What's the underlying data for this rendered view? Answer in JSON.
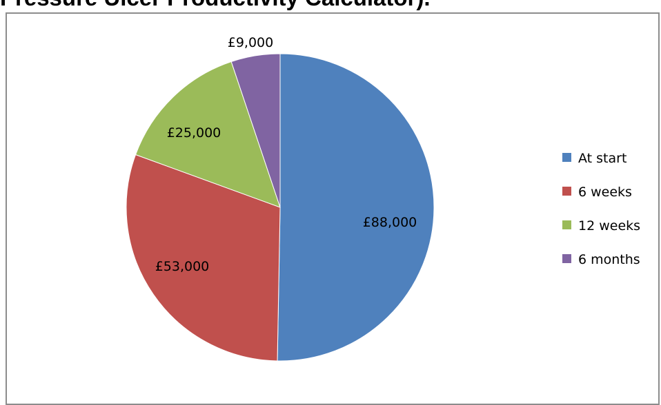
{
  "page": {
    "heading": "Pressure Ulcer Productivity Calculator)."
  },
  "chart_data": {
    "type": "pie",
    "title": "",
    "categories": [
      "At start",
      "6 weeks",
      "12 weeks",
      "6 months"
    ],
    "values": [
      88000,
      53000,
      25000,
      9000
    ],
    "data_labels": [
      "£88,000",
      "£53,000",
      "£25,000",
      "£9,000"
    ],
    "colors": [
      "#4f81bd",
      "#c0504d",
      "#9bbb59",
      "#8064a2"
    ],
    "start_angle": "12 o'clock",
    "direction": "clockwise",
    "legend": {
      "position": "right",
      "entries": [
        "At start",
        "6 weeks",
        "12 weeks",
        "6 months"
      ]
    }
  }
}
